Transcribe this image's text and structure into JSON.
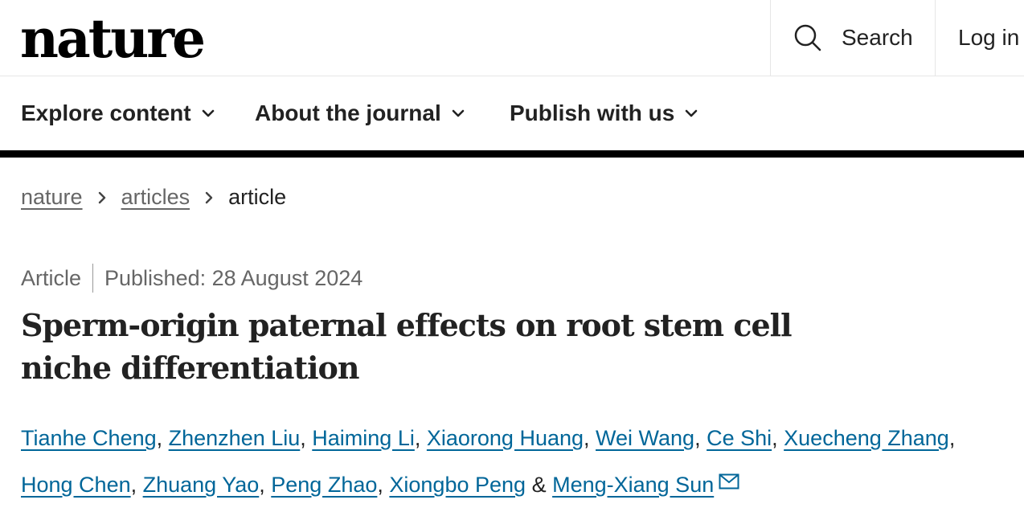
{
  "header": {
    "logo": "nature",
    "search_label": "Search",
    "login_label": "Log in"
  },
  "nav": {
    "items": [
      {
        "label": "Explore content"
      },
      {
        "label": "About the journal"
      },
      {
        "label": "Publish with us"
      }
    ]
  },
  "breadcrumb": {
    "items": [
      "nature",
      "articles"
    ],
    "current": "article"
  },
  "article": {
    "type": "Article",
    "published": "Published: 28 August 2024",
    "title": "Sperm-origin paternal effects on root stem cell niche differentiation",
    "authors": [
      "Tianhe Cheng",
      "Zhenzhen Liu",
      "Haiming Li",
      "Xiaorong Huang",
      "Wei Wang",
      "Ce Shi",
      "Xuecheng Zhang",
      "Hong Chen",
      "Zhuang Yao",
      "Peng Zhao",
      "Xiongbo Peng",
      "Meng-Xiang Sun"
    ],
    "and": "&"
  },
  "colors": {
    "link": "#006699",
    "muted": "#666666",
    "text": "#222222"
  },
  "icons": {
    "search": "search-icon",
    "chevron": "chevron-down-icon",
    "mail": "mail-icon"
  }
}
